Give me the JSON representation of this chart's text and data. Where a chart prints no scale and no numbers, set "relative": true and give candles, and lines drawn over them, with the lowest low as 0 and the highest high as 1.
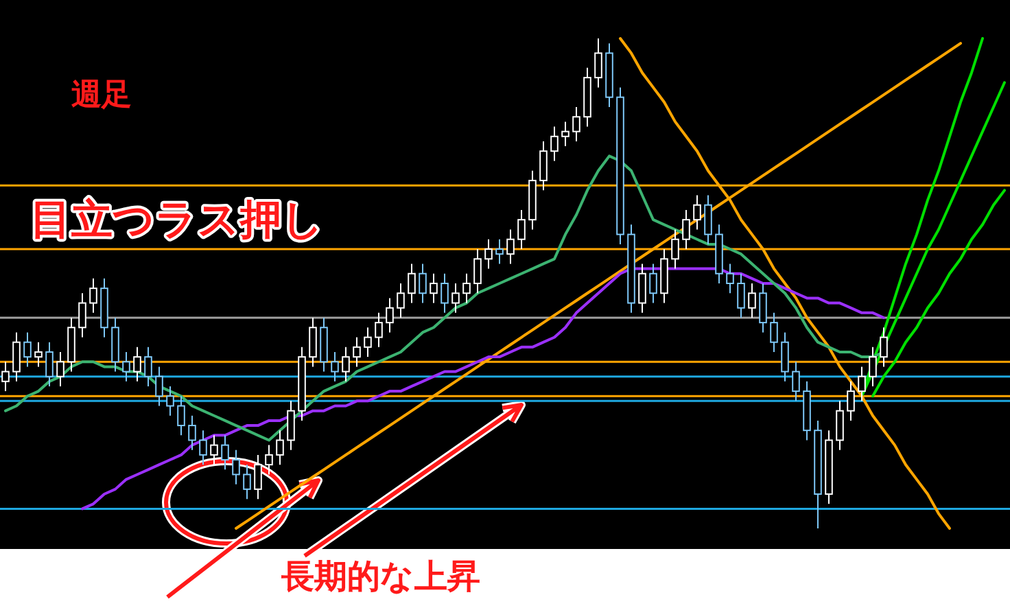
{
  "chart_data": {
    "type": "candlestick",
    "relative": true,
    "title": "週足",
    "categories": [
      null,
      null,
      null,
      null,
      null,
      null,
      null,
      null,
      null,
      null,
      null,
      null,
      null,
      null,
      null,
      null,
      null,
      null,
      null,
      null,
      null,
      null,
      null,
      null,
      null,
      null,
      null,
      null,
      null,
      null,
      null,
      null,
      null,
      null,
      null,
      null,
      null,
      null,
      null,
      null,
      null,
      null,
      null,
      null,
      null,
      null,
      null,
      null,
      null,
      null,
      null,
      null,
      null,
      null,
      null,
      null,
      null,
      null,
      null,
      null,
      null,
      null,
      null,
      null,
      null,
      null,
      null,
      null,
      null,
      null,
      null,
      null,
      null,
      null,
      null,
      null,
      null,
      null,
      null,
      null,
      null,
      null,
      null,
      null,
      null,
      null,
      null,
      null,
      null,
      null,
      null,
      null
    ],
    "ohlc": [
      [
        0.3,
        0.34,
        0.28,
        0.32
      ],
      [
        0.32,
        0.4,
        0.3,
        0.38
      ],
      [
        0.38,
        0.4,
        0.33,
        0.35
      ],
      [
        0.35,
        0.38,
        0.33,
        0.36
      ],
      [
        0.36,
        0.38,
        0.29,
        0.31
      ],
      [
        0.31,
        0.36,
        0.29,
        0.34
      ],
      [
        0.34,
        0.43,
        0.32,
        0.41
      ],
      [
        0.41,
        0.48,
        0.39,
        0.46
      ],
      [
        0.46,
        0.51,
        0.44,
        0.49
      ],
      [
        0.49,
        0.51,
        0.39,
        0.41
      ],
      [
        0.41,
        0.43,
        0.32,
        0.34
      ],
      [
        0.34,
        0.36,
        0.3,
        0.32
      ],
      [
        0.32,
        0.37,
        0.3,
        0.35
      ],
      [
        0.35,
        0.37,
        0.29,
        0.31
      ],
      [
        0.31,
        0.33,
        0.25,
        0.27
      ],
      [
        0.27,
        0.29,
        0.23,
        0.25
      ],
      [
        0.25,
        0.27,
        0.19,
        0.21
      ],
      [
        0.21,
        0.23,
        0.16,
        0.18
      ],
      [
        0.18,
        0.2,
        0.13,
        0.15
      ],
      [
        0.15,
        0.19,
        0.13,
        0.17
      ],
      [
        0.17,
        0.19,
        0.12,
        0.14
      ],
      [
        0.14,
        0.16,
        0.09,
        0.11
      ],
      [
        0.11,
        0.13,
        0.06,
        0.08
      ],
      [
        0.08,
        0.15,
        0.06,
        0.13
      ],
      [
        0.13,
        0.17,
        0.11,
        0.15
      ],
      [
        0.15,
        0.2,
        0.13,
        0.18
      ],
      [
        0.18,
        0.26,
        0.16,
        0.24
      ],
      [
        0.24,
        0.37,
        0.22,
        0.35
      ],
      [
        0.35,
        0.43,
        0.33,
        0.41
      ],
      [
        0.41,
        0.43,
        0.32,
        0.34
      ],
      [
        0.34,
        0.36,
        0.3,
        0.32
      ],
      [
        0.32,
        0.37,
        0.3,
        0.35
      ],
      [
        0.35,
        0.39,
        0.33,
        0.37
      ],
      [
        0.37,
        0.41,
        0.35,
        0.39
      ],
      [
        0.39,
        0.44,
        0.37,
        0.42
      ],
      [
        0.42,
        0.47,
        0.4,
        0.45
      ],
      [
        0.45,
        0.5,
        0.43,
        0.48
      ],
      [
        0.48,
        0.54,
        0.46,
        0.52
      ],
      [
        0.52,
        0.54,
        0.46,
        0.48
      ],
      [
        0.48,
        0.52,
        0.46,
        0.5
      ],
      [
        0.5,
        0.52,
        0.44,
        0.46
      ],
      [
        0.46,
        0.5,
        0.44,
        0.48
      ],
      [
        0.48,
        0.52,
        0.46,
        0.5
      ],
      [
        0.5,
        0.57,
        0.48,
        0.55
      ],
      [
        0.55,
        0.59,
        0.53,
        0.57
      ],
      [
        0.57,
        0.59,
        0.54,
        0.56
      ],
      [
        0.56,
        0.61,
        0.54,
        0.59
      ],
      [
        0.59,
        0.65,
        0.57,
        0.63
      ],
      [
        0.63,
        0.73,
        0.61,
        0.71
      ],
      [
        0.71,
        0.79,
        0.69,
        0.77
      ],
      [
        0.77,
        0.82,
        0.75,
        0.8
      ],
      [
        0.8,
        0.83,
        0.78,
        0.81
      ],
      [
        0.81,
        0.86,
        0.79,
        0.84
      ],
      [
        0.84,
        0.94,
        0.82,
        0.92
      ],
      [
        0.92,
        1.0,
        0.9,
        0.97
      ],
      [
        0.97,
        0.99,
        0.86,
        0.88
      ],
      [
        0.88,
        0.9,
        0.58,
        0.6
      ],
      [
        0.6,
        0.62,
        0.44,
        0.46
      ],
      [
        0.46,
        0.54,
        0.44,
        0.52
      ],
      [
        0.52,
        0.54,
        0.46,
        0.48
      ],
      [
        0.48,
        0.57,
        0.46,
        0.55
      ],
      [
        0.55,
        0.61,
        0.53,
        0.59
      ],
      [
        0.59,
        0.65,
        0.57,
        0.63
      ],
      [
        0.63,
        0.68,
        0.61,
        0.66
      ],
      [
        0.66,
        0.68,
        0.58,
        0.6
      ],
      [
        0.6,
        0.62,
        0.5,
        0.52
      ],
      [
        0.52,
        0.54,
        0.48,
        0.5
      ],
      [
        0.5,
        0.52,
        0.43,
        0.45
      ],
      [
        0.45,
        0.5,
        0.43,
        0.48
      ],
      [
        0.48,
        0.5,
        0.4,
        0.42
      ],
      [
        0.42,
        0.44,
        0.36,
        0.38
      ],
      [
        0.38,
        0.4,
        0.3,
        0.32
      ],
      [
        0.32,
        0.34,
        0.26,
        0.28
      ],
      [
        0.28,
        0.3,
        0.18,
        0.2
      ],
      [
        0.2,
        0.22,
        0.0,
        0.07
      ],
      [
        0.07,
        0.2,
        0.05,
        0.18
      ],
      [
        0.18,
        0.26,
        0.16,
        0.24
      ],
      [
        0.24,
        0.3,
        0.22,
        0.28
      ],
      [
        0.28,
        0.33,
        0.26,
        0.31
      ],
      [
        0.31,
        0.37,
        0.29,
        0.35
      ],
      [
        0.35,
        0.41,
        0.33,
        0.39
      ],
      null,
      null,
      null,
      null,
      null,
      null,
      null,
      null,
      null,
      null,
      null
    ],
    "series": [
      {
        "type": "line",
        "color": "#3cb371",
        "values": [
          0.24,
          0.25,
          0.27,
          0.28,
          0.3,
          0.31,
          0.33,
          0.34,
          0.34,
          0.33,
          0.33,
          0.32,
          0.32,
          0.31,
          0.29,
          0.28,
          0.27,
          0.25,
          0.24,
          0.23,
          0.22,
          0.21,
          0.2,
          0.19,
          0.18,
          0.2,
          0.22,
          0.24,
          0.26,
          0.28,
          0.29,
          0.3,
          0.32,
          0.33,
          0.34,
          0.35,
          0.36,
          0.38,
          0.4,
          0.41,
          0.43,
          0.45,
          0.46,
          0.48,
          0.49,
          0.5,
          0.51,
          0.52,
          0.53,
          0.54,
          0.55,
          0.6,
          0.64,
          0.69,
          0.73,
          0.76,
          0.75,
          0.73,
          0.68,
          0.63,
          0.62,
          0.61,
          0.6,
          0.59,
          0.58,
          0.58,
          0.57,
          0.56,
          0.54,
          0.52,
          0.5,
          0.48,
          0.45,
          0.41,
          0.38,
          0.37,
          0.36,
          0.36,
          0.35,
          0.35,
          0.36,
          null,
          null,
          null,
          null,
          null,
          null,
          null,
          null,
          null,
          null,
          null
        ]
      },
      {
        "type": "line",
        "color": "#9b30ff",
        "values": [
          null,
          null,
          null,
          null,
          null,
          null,
          null,
          0.04,
          0.05,
          0.07,
          0.08,
          0.1,
          0.11,
          0.12,
          0.13,
          0.14,
          0.15,
          0.17,
          0.18,
          0.19,
          0.19,
          0.2,
          0.21,
          0.21,
          0.22,
          0.22,
          0.23,
          0.23,
          0.24,
          0.24,
          0.25,
          0.25,
          0.26,
          0.26,
          0.27,
          0.28,
          0.28,
          0.29,
          0.3,
          0.31,
          0.32,
          0.32,
          0.33,
          0.34,
          0.35,
          0.35,
          0.36,
          0.37,
          0.37,
          0.38,
          0.39,
          0.41,
          0.44,
          0.46,
          0.48,
          0.5,
          0.52,
          0.53,
          0.53,
          0.53,
          0.53,
          0.53,
          0.53,
          0.53,
          0.53,
          0.53,
          0.52,
          0.52,
          0.51,
          0.5,
          0.5,
          0.49,
          0.48,
          0.47,
          0.47,
          0.46,
          0.46,
          0.45,
          0.44,
          0.44,
          0.43,
          null,
          null,
          null,
          null,
          null,
          null,
          null,
          null,
          null,
          null,
          null
        ]
      },
      {
        "type": "line",
        "color": "#ffa500",
        "values": [
          null,
          null,
          null,
          null,
          null,
          null,
          null,
          null,
          null,
          null,
          null,
          null,
          null,
          null,
          null,
          null,
          null,
          null,
          null,
          null,
          null,
          0,
          0.015,
          0.03,
          0.045,
          0.06,
          0.075,
          0.09,
          0.105,
          0.12,
          0.135,
          0.15,
          0.165,
          0.18,
          0.195,
          0.21,
          0.225,
          0.24,
          0.255,
          0.27,
          0.285,
          0.3,
          0.315,
          0.33,
          0.345,
          0.36,
          0.375,
          0.39,
          0.405,
          0.42,
          0.435,
          0.45,
          0.465,
          0.48,
          0.495,
          0.51,
          0.525,
          0.54,
          0.555,
          0.57,
          0.585,
          0.6,
          0.615,
          0.63,
          0.645,
          0.66,
          0.675,
          0.69,
          0.705,
          0.72,
          0.735,
          0.75,
          0.765,
          0.78,
          0.795,
          0.81,
          0.825,
          0.84,
          0.855,
          0.87,
          0.885,
          0.9,
          0.915,
          0.93,
          0.945,
          0.96,
          0.975,
          0.99,
          null,
          null,
          null,
          null
        ]
      },
      {
        "type": "line",
        "color": "#ffa500",
        "values": [
          null,
          null,
          null,
          null,
          null,
          null,
          null,
          null,
          null,
          null,
          null,
          null,
          null,
          null,
          null,
          null,
          null,
          null,
          null,
          null,
          null,
          null,
          null,
          null,
          null,
          null,
          null,
          null,
          null,
          null,
          null,
          null,
          null,
          null,
          null,
          null,
          null,
          null,
          null,
          null,
          null,
          null,
          null,
          null,
          null,
          null,
          null,
          null,
          null,
          null,
          null,
          null,
          null,
          null,
          null,
          null,
          1,
          0.97,
          0.93,
          0.9,
          0.87,
          0.83,
          0.8,
          0.77,
          0.73,
          0.7,
          0.67,
          0.63,
          0.6,
          0.57,
          0.53,
          0.5,
          0.47,
          0.43,
          0.4,
          0.37,
          0.33,
          0.3,
          0.27,
          0.23,
          0.2,
          0.17,
          0.13,
          0.1,
          0.07,
          0.03,
          0,
          null,
          null,
          null,
          null,
          null
        ]
      },
      {
        "type": "line",
        "color": "#00e000",
        "values": [
          null,
          null,
          null,
          null,
          null,
          null,
          null,
          null,
          null,
          null,
          null,
          null,
          null,
          null,
          null,
          null,
          null,
          null,
          null,
          null,
          null,
          null,
          null,
          null,
          null,
          null,
          null,
          null,
          null,
          null,
          null,
          null,
          null,
          null,
          null,
          null,
          null,
          null,
          null,
          null,
          null,
          null,
          null,
          null,
          null,
          null,
          null,
          null,
          null,
          null,
          null,
          null,
          null,
          null,
          null,
          null,
          null,
          null,
          null,
          null,
          null,
          null,
          null,
          null,
          null,
          null,
          null,
          null,
          null,
          null,
          null,
          null,
          null,
          null,
          null,
          null,
          null,
          null,
          0.27,
          0.34,
          0.4,
          0.47,
          0.54,
          0.6,
          0.67,
          0.73,
          0.8,
          0.87,
          0.93,
          1.0,
          null,
          null
        ]
      },
      {
        "type": "line",
        "color": "#00e000",
        "values": [
          null,
          null,
          null,
          null,
          null,
          null,
          null,
          null,
          null,
          null,
          null,
          null,
          null,
          null,
          null,
          null,
          null,
          null,
          null,
          null,
          null,
          null,
          null,
          null,
          null,
          null,
          null,
          null,
          null,
          null,
          null,
          null,
          null,
          null,
          null,
          null,
          null,
          null,
          null,
          null,
          null,
          null,
          null,
          null,
          null,
          null,
          null,
          null,
          null,
          null,
          null,
          null,
          null,
          null,
          null,
          null,
          null,
          null,
          null,
          null,
          null,
          null,
          null,
          null,
          null,
          null,
          null,
          null,
          null,
          null,
          null,
          null,
          null,
          null,
          null,
          null,
          null,
          null,
          0.27,
          0.32,
          0.37,
          0.42,
          0.47,
          0.52,
          0.57,
          0.61,
          0.66,
          0.71,
          0.76,
          0.81,
          0.86,
          0.91
        ]
      },
      {
        "type": "line",
        "color": "#00e000",
        "values": [
          null,
          null,
          null,
          null,
          null,
          null,
          null,
          null,
          null,
          null,
          null,
          null,
          null,
          null,
          null,
          null,
          null,
          null,
          null,
          null,
          null,
          null,
          null,
          null,
          null,
          null,
          null,
          null,
          null,
          null,
          null,
          null,
          null,
          null,
          null,
          null,
          null,
          null,
          null,
          null,
          null,
          null,
          null,
          null,
          null,
          null,
          null,
          null,
          null,
          null,
          null,
          null,
          null,
          null,
          null,
          null,
          null,
          null,
          null,
          null,
          null,
          null,
          null,
          null,
          null,
          null,
          null,
          null,
          null,
          null,
          null,
          null,
          null,
          null,
          null,
          null,
          null,
          null,
          null,
          0.27,
          0.31,
          0.34,
          0.38,
          0.41,
          0.45,
          0.48,
          0.52,
          0.55,
          0.59,
          0.62,
          0.66,
          0.69
        ]
      }
    ],
    "ref_lines": [
      {
        "axis": "y",
        "value": 0.43,
        "color": "#a0a0a0"
      },
      {
        "axis": "y",
        "value": 0.7,
        "color": "#ffa500"
      },
      {
        "axis": "y",
        "value": 0.57,
        "color": "#ffa500"
      },
      {
        "axis": "y",
        "value": 0.34,
        "color": "#ffa500"
      },
      {
        "axis": "y",
        "value": 0.27,
        "color": "#ffa500"
      },
      {
        "axis": "y",
        "value": 0.31,
        "color": "#1ea8e0"
      },
      {
        "axis": "y",
        "value": 0.26,
        "color": "#1ea8e0"
      },
      {
        "axis": "y",
        "value": 0.04,
        "color": "#1ea8e0"
      }
    ],
    "annotations": [
      "目立つラス押し",
      "長期的な上昇"
    ]
  }
}
